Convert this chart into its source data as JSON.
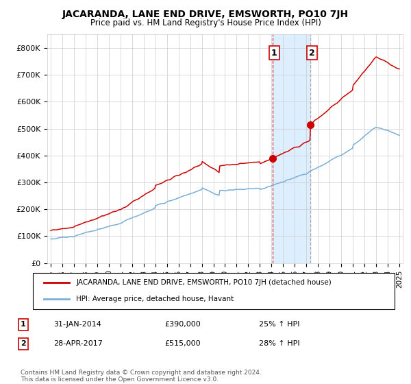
{
  "title": "JACARANDA, LANE END DRIVE, EMSWORTH, PO10 7JH",
  "subtitle": "Price paid vs. HM Land Registry's House Price Index (HPI)",
  "legend_line1": "JACARANDA, LANE END DRIVE, EMSWORTH, PO10 7JH (detached house)",
  "legend_line2": "HPI: Average price, detached house, Havant",
  "transaction1_date": "31-JAN-2014",
  "transaction1_price": "£390,000",
  "transaction1_hpi": "25% ↑ HPI",
  "transaction2_date": "28-APR-2017",
  "transaction2_price": "£515,000",
  "transaction2_hpi": "28% ↑ HPI",
  "footer": "Contains HM Land Registry data © Crown copyright and database right 2024.\nThis data is licensed under the Open Government Licence v3.0.",
  "red_color": "#cc0000",
  "blue_color": "#7aaed6",
  "highlight_color": "#ddeeff",
  "ylim": [
    0,
    850000
  ],
  "yticks": [
    0,
    100000,
    200000,
    300000,
    400000,
    500000,
    600000,
    700000,
    800000
  ],
  "ytick_labels": [
    "£0",
    "£100K",
    "£200K",
    "£300K",
    "£400K",
    "£500K",
    "£600K",
    "£700K",
    "£800K"
  ],
  "transaction1_x": 2014.08,
  "transaction1_y": 390000,
  "transaction2_x": 2017.32,
  "transaction2_y": 515000,
  "xlim_left": 1994.7,
  "xlim_right": 2025.3
}
